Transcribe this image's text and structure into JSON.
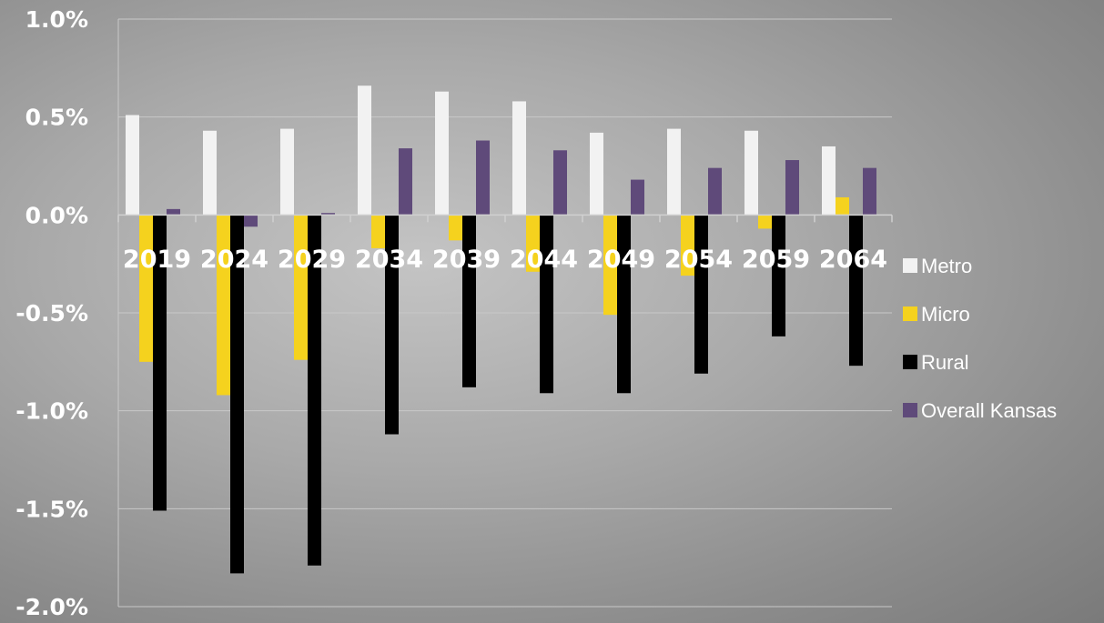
{
  "chart_data": {
    "type": "bar",
    "title": "",
    "xlabel": "",
    "ylabel": "",
    "categories": [
      "2019",
      "2024",
      "2029",
      "2034",
      "2039",
      "2044",
      "2049",
      "2054",
      "2059",
      "2064"
    ],
    "ylim": [
      -2.0,
      1.0
    ],
    "yticks": [
      1.0,
      0.5,
      0.0,
      -0.5,
      -1.0,
      -1.5,
      -2.0
    ],
    "ytick_labels": [
      "1.0%",
      "0.5%",
      "0.0%",
      "-0.5%",
      "-1.0%",
      "-1.5%",
      "-2.0%"
    ],
    "grid": true,
    "legend_position": "right",
    "series": [
      {
        "name": "Metro",
        "color": "#f2f2f2",
        "values": [
          0.51,
          0.43,
          0.44,
          0.66,
          0.63,
          0.58,
          0.42,
          0.44,
          0.43,
          0.35
        ]
      },
      {
        "name": "Micro",
        "color": "#f5d21e",
        "values": [
          -0.75,
          -0.92,
          -0.74,
          -0.17,
          -0.13,
          -0.29,
          -0.51,
          -0.31,
          -0.07,
          0.09
        ]
      },
      {
        "name": "Rural",
        "color": "#000000",
        "values": [
          -1.51,
          -1.83,
          -1.79,
          -1.12,
          -0.88,
          -0.91,
          -0.91,
          -0.81,
          -0.62,
          -0.77
        ]
      },
      {
        "name": "Overall Kansas",
        "color": "#5f4a7a",
        "values": [
          0.03,
          -0.06,
          0.01,
          0.34,
          0.38,
          0.33,
          0.18,
          0.24,
          0.28,
          0.24
        ]
      }
    ]
  }
}
